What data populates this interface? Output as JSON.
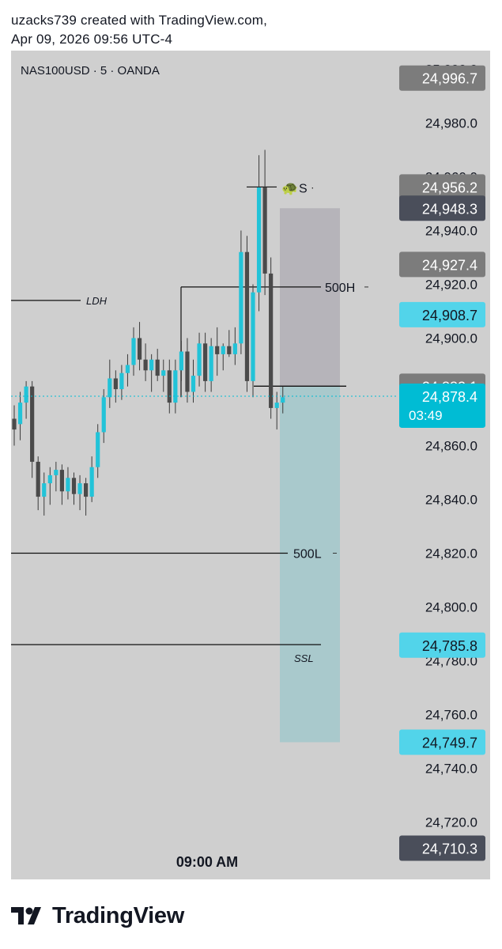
{
  "header": {
    "line1": "uzacks739 created with TradingView.com,",
    "line2": "Apr 09, 2026 09:56 UTC-4"
  },
  "symbol": "NAS100USD · 5 · OANDA",
  "time_label": "09:00 AM",
  "footer": {
    "brand": "TradingView"
  },
  "colors": {
    "bull": "#22c3d8",
    "bear": "#4a4a4a",
    "pane_bg": "#cfcfcf",
    "current_price": "#00bcd4",
    "light_label": "#52d4ea",
    "grey_label": "#7c7c7c",
    "dark_label": "#4a4e5a",
    "target_zone": "#a9c9cc",
    "stop_zone": "#b6b4ba"
  },
  "chart_data": {
    "type": "candlestick",
    "symbol": "NAS100USD",
    "interval": "5",
    "source": "OANDA",
    "ylim": [
      24700,
      25005
    ],
    "y_ticks": [
      25000,
      24980,
      24960,
      24940,
      24920,
      24900,
      24860,
      24840,
      24820,
      24800,
      24780,
      24760,
      24740,
      24720
    ],
    "x_tick_label": "09:00 AM",
    "candles": [
      [
        24870,
        24875,
        24860,
        24866
      ],
      [
        24868,
        24880,
        24862,
        24876
      ],
      [
        24876,
        24884,
        24870,
        24882
      ],
      [
        24882,
        24884,
        24848,
        24854
      ],
      [
        24854,
        24856,
        24836,
        24841
      ],
      [
        24841,
        24850,
        24834,
        24846
      ],
      [
        24846,
        24852,
        24838,
        24849
      ],
      [
        24849,
        24854,
        24843,
        24851
      ],
      [
        24851,
        24853,
        24838,
        24843
      ],
      [
        24843,
        24852,
        24840,
        24848
      ],
      [
        24848,
        24850,
        24838,
        24842
      ],
      [
        24842,
        24849,
        24836,
        24846
      ],
      [
        24846,
        24848,
        24834,
        24841
      ],
      [
        24841,
        24856,
        24839,
        24852
      ],
      [
        24852,
        24868,
        24848,
        24865
      ],
      [
        24865,
        24881,
        24861,
        24878
      ],
      [
        24878,
        24892,
        24874,
        24885
      ],
      [
        24885,
        24888,
        24876,
        24881
      ],
      [
        24881,
        24890,
        24877,
        24887
      ],
      [
        24887,
        24894,
        24882,
        24890
      ],
      [
        24890,
        24904,
        24886,
        24900
      ],
      [
        24900,
        24906,
        24888,
        24892
      ],
      [
        24892,
        24898,
        24884,
        24888
      ],
      [
        24888,
        24894,
        24880,
        24892
      ],
      [
        24892,
        24896,
        24884,
        24886
      ],
      [
        24886,
        24892,
        24880,
        24888
      ],
      [
        24888,
        24892,
        24872,
        24876
      ],
      [
        24876,
        24892,
        24872,
        24888
      ],
      [
        24888,
        24899,
        24884,
        24895
      ],
      [
        24895,
        24900,
        24876,
        24880
      ],
      [
        24880,
        24892,
        24876,
        24886
      ],
      [
        24886,
        24902,
        24882,
        24898
      ],
      [
        24898,
        24902,
        24880,
        24884
      ],
      [
        24884,
        24900,
        24880,
        24897
      ],
      [
        24897,
        24904,
        24886,
        24894
      ],
      [
        24894,
        24898,
        24888,
        24897
      ],
      [
        24897,
        24903,
        24893,
        24894
      ],
      [
        24894,
        24904,
        24890,
        24898
      ],
      [
        24898,
        24940,
        24894,
        24932
      ],
      [
        24932,
        24938,
        24880,
        24884
      ],
      [
        24884,
        24920,
        24878,
        24917
      ],
      [
        24917,
        24968,
        24910,
        24956
      ],
      [
        24956,
        24970,
        24916,
        24924
      ],
      [
        24924,
        24930,
        24870,
        24874
      ],
      [
        24874,
        24880,
        24866,
        24876
      ],
      [
        24876,
        24882,
        24872,
        24878
      ]
    ],
    "price_labels": [
      {
        "value": 24996.7,
        "text": "24,996.7",
        "style": "grey"
      },
      {
        "value": 24956.2,
        "text": "24,956.2",
        "style": "grey"
      },
      {
        "value": 24948.3,
        "text": "24,948.3",
        "style": "dark"
      },
      {
        "value": 24927.4,
        "text": "24,927.4",
        "style": "grey"
      },
      {
        "value": 24908.7,
        "text": "24,908.7",
        "style": "light"
      },
      {
        "value": 24882.1,
        "text": "24,882.1",
        "style": "grey"
      },
      {
        "value": 24878.4,
        "text": "24,878.4",
        "style": "current",
        "countdown": "03:49"
      },
      {
        "value": 24785.8,
        "text": "24,785.8",
        "style": "light"
      },
      {
        "value": 24749.7,
        "text": "24,749.7",
        "style": "light"
      },
      {
        "value": 24710.3,
        "text": "24,710.3",
        "style": "dark"
      }
    ],
    "levels": [
      {
        "label": "LDH",
        "value": 24914
      },
      {
        "label": "500H",
        "value": 24919
      },
      {
        "label": "500L",
        "value": 24820
      },
      {
        "label": "SSL",
        "value": 24786
      }
    ],
    "position": {
      "entry": 24882.1,
      "stop": 24948.3,
      "target": 24749.7
    },
    "signal": {
      "text": "S",
      "value": 24956.2,
      "icon": "turtle-icon"
    }
  }
}
